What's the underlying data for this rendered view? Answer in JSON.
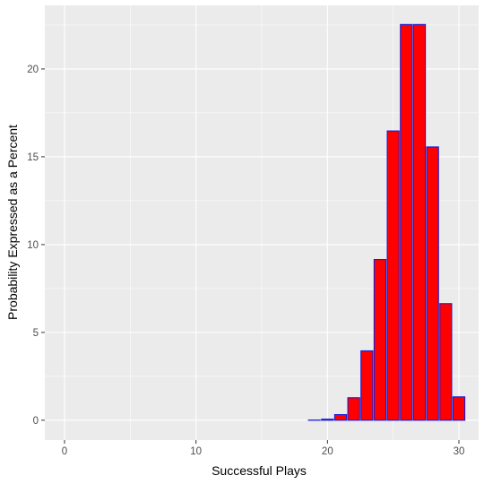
{
  "chart_data": {
    "type": "bar",
    "title": "",
    "xlabel": "Successful Plays",
    "ylabel": "Probability Expressed as a Percent",
    "xlim": [
      -1.5,
      31.5
    ],
    "ylim": [
      -1.13,
      23.62
    ],
    "x_ticks": [
      0,
      10,
      20,
      30
    ],
    "x_tick_labels": [
      "0",
      "10",
      "20",
      "30"
    ],
    "y_ticks": [
      0,
      5,
      10,
      15,
      20
    ],
    "y_tick_labels": [
      "0",
      "5",
      "10",
      "15",
      "20"
    ],
    "grid": true,
    "legend": "none",
    "bar_fill": "#ff0000",
    "bar_outline": "#1a1ad8",
    "x": [
      0,
      1,
      2,
      3,
      4,
      5,
      6,
      7,
      8,
      9,
      10,
      11,
      12,
      13,
      14,
      15,
      16,
      17,
      18,
      19,
      20,
      21,
      22,
      23,
      24,
      25,
      26,
      27,
      28,
      29,
      30
    ],
    "values": [
      0,
      0,
      0,
      0,
      0,
      0,
      0,
      0,
      0,
      0,
      0,
      0,
      0,
      0,
      0,
      0,
      0,
      0,
      0,
      0.01,
      0.06,
      0.32,
      1.28,
      3.95,
      9.15,
      16.47,
      22.53,
      22.53,
      15.56,
      6.64,
      1.33
    ]
  }
}
